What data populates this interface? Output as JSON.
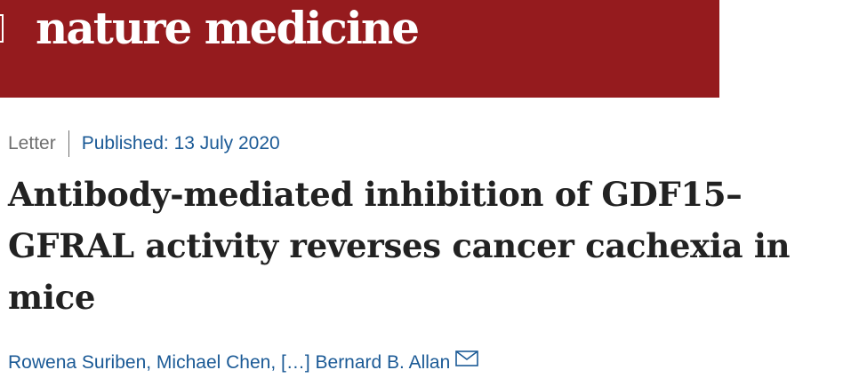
{
  "header": {
    "logo_text": "nature medicine",
    "banner_color": "#951b1e"
  },
  "article": {
    "type": "Letter",
    "published": "Published: 13 July 2020",
    "title": "Antibody-mediated inhibition of GDF15–GFRAL activity reverses cancer cachexia in mice",
    "authors": "Rowena Suriben, Michael Chen, […] Bernard B. Allan",
    "mail_icon": "envelope-icon",
    "link_color": "#1b5a96"
  }
}
